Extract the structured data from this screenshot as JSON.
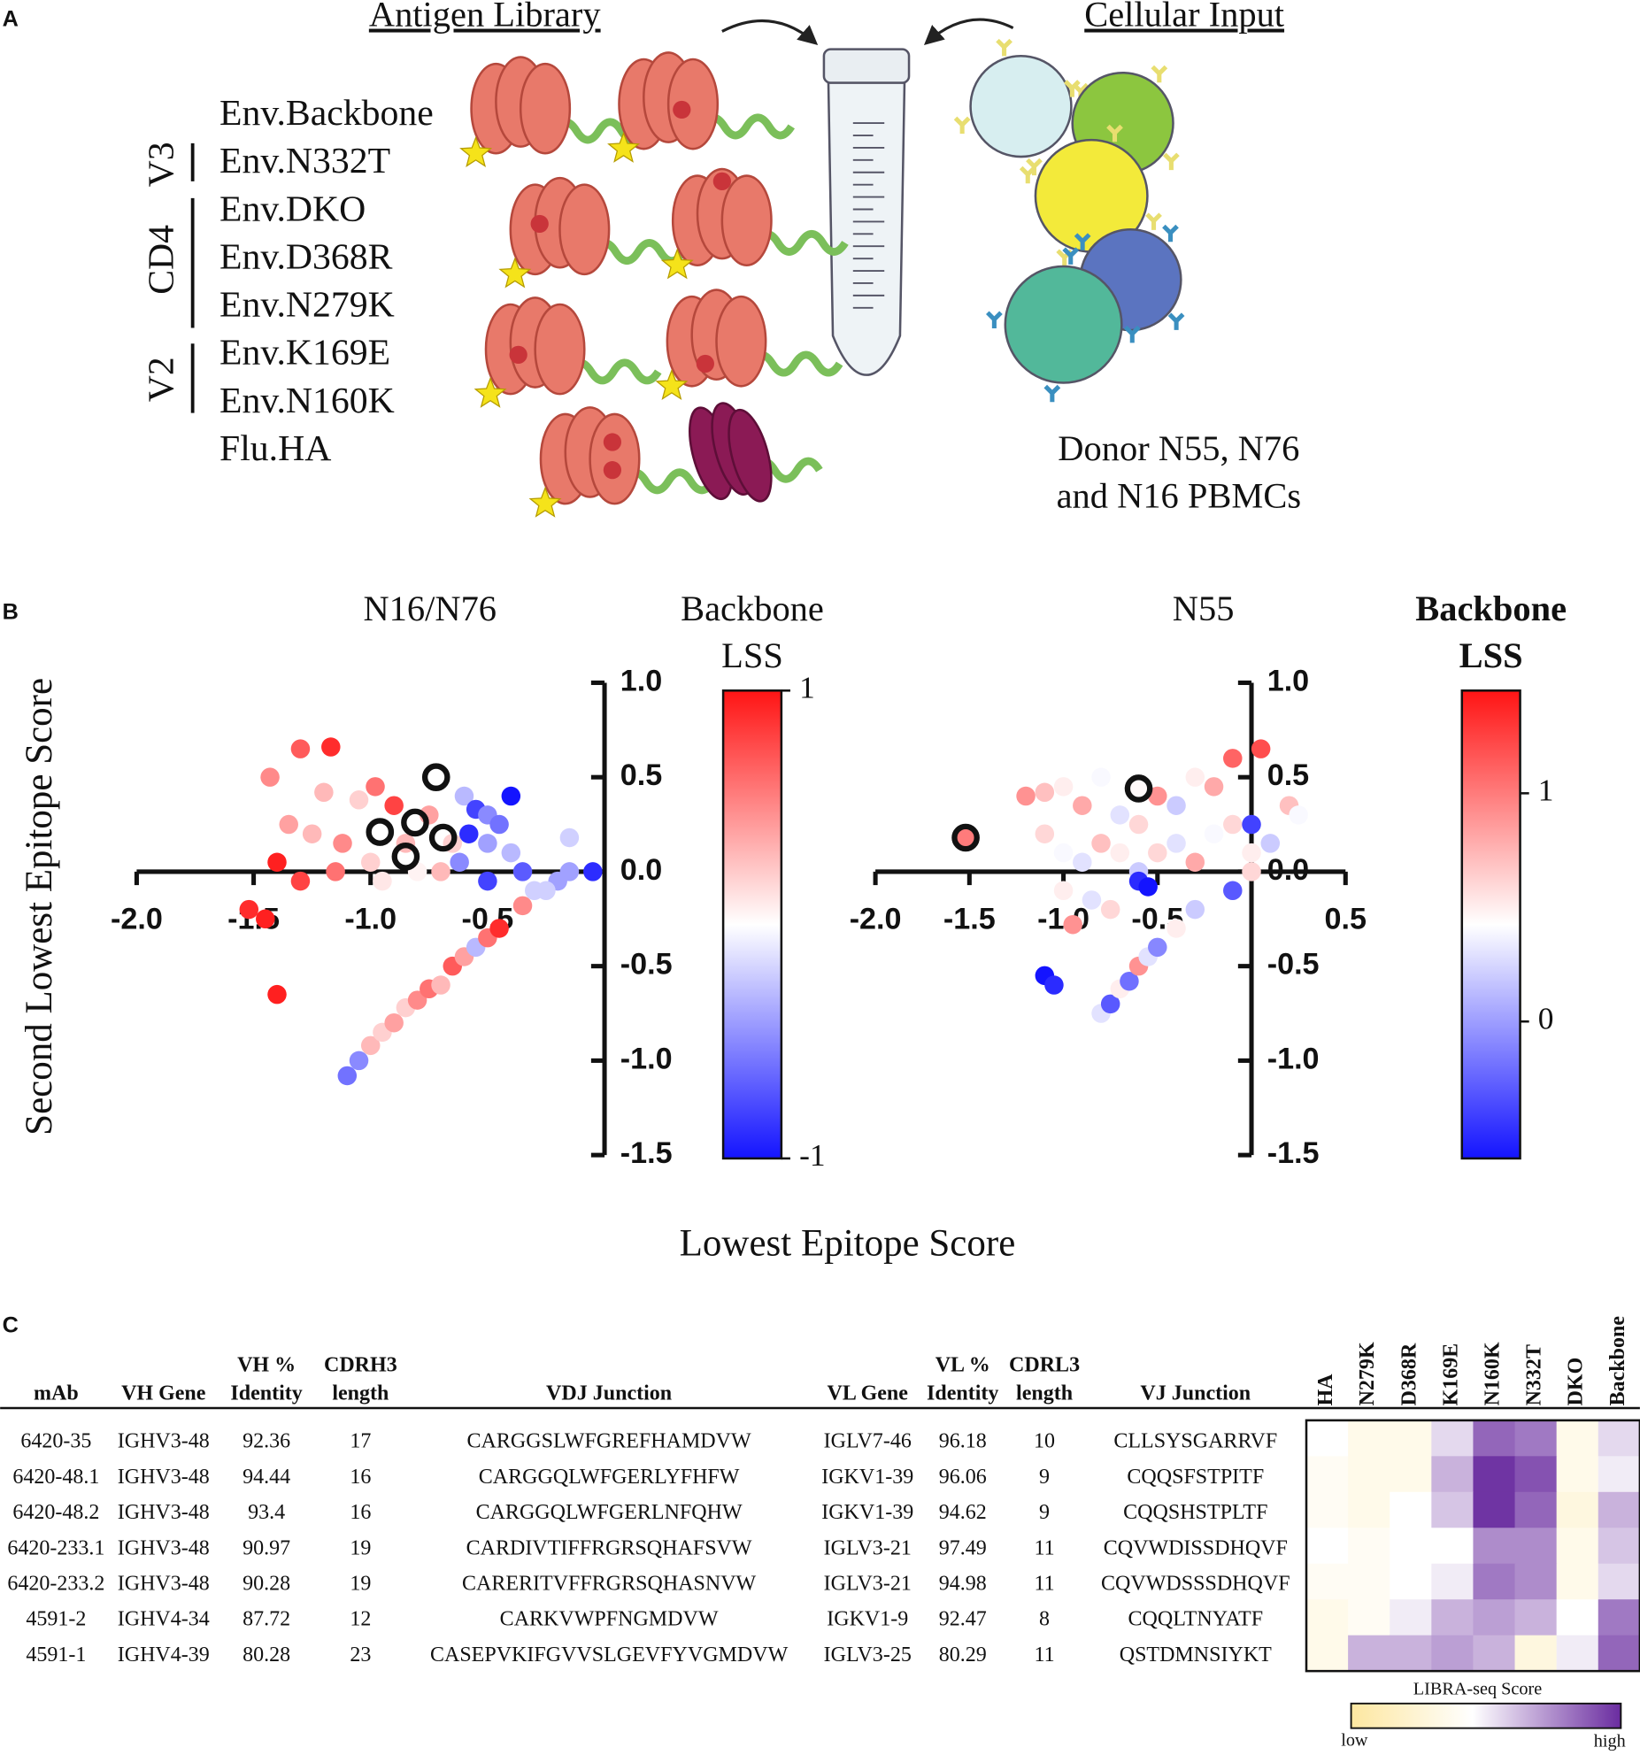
{
  "panel_a": {
    "label": "A",
    "library_title": "Antigen Library",
    "input_title": "Cellular Input",
    "antigens": [
      "Env.Backbone",
      "Env.N332T",
      "Env.DKO",
      "Env.D368R",
      "Env.N279K",
      "Env.K169E",
      "Env.N160K",
      "Flu.HA"
    ],
    "groups": [
      "V3",
      "CD4",
      "V2"
    ],
    "donor_lines": [
      "Donor N55, N76",
      "and N16 PBMCs"
    ]
  },
  "panel_b": {
    "label": "B",
    "x_label": "Lowest Epitope Score",
    "y_label": "Second Lowest Epitope Score"
  },
  "chart_data": [
    {
      "type": "scatter",
      "title": "N16/N76",
      "colorbar_title": [
        "Backbone",
        "LSS"
      ],
      "xlim": [
        -2,
        0
      ],
      "ylim": [
        -1.5,
        1
      ],
      "xticks": [
        {
          "value": -2,
          "label": "-2.0"
        },
        {
          "value": -1.5,
          "label": "-1.5"
        },
        {
          "value": -1,
          "label": "-1.0"
        },
        -0.5
      ],
      "yticks": [
        {
          "value": 1,
          "label": "1.0"
        },
        0.5,
        {
          "value": 0,
          "label": "0.0"
        },
        -0.5,
        {
          "value": -1,
          "label": "-1.0"
        },
        {
          "value": -1.5,
          "label": "-1.5"
        }
      ],
      "clim": [
        -1,
        1
      ],
      "cticks": [
        1,
        -1
      ],
      "x": [
        -1.3,
        -1.17,
        -1.43,
        -1.2,
        -1.05,
        -0.98,
        -1.35,
        -1.25,
        -1.12,
        -1.0,
        -0.9,
        -0.85,
        -0.95,
        -1.15,
        -1.4,
        -1.52,
        -1.45,
        -1.3,
        -0.8,
        -0.75,
        -0.7,
        -0.65,
        -1.4,
        -0.6,
        -0.55,
        -0.5,
        -0.45,
        -0.5,
        -0.58,
        -0.4,
        -0.35,
        -0.15,
        -0.2,
        -0.3,
        -0.05,
        -0.5,
        -0.62,
        -0.4,
        -1.1,
        -1.05,
        -1.0,
        -0.95,
        -0.9,
        -0.85,
        -0.8,
        -0.75,
        -0.7,
        -0.65,
        -0.6,
        -0.55,
        -0.5,
        -0.45,
        -0.35,
        -0.25,
        -0.15
      ],
      "y": [
        0.65,
        0.66,
        0.5,
        0.42,
        0.38,
        0.45,
        0.25,
        0.2,
        0.15,
        0.05,
        0.35,
        0.15,
        -0.05,
        0.0,
        0.05,
        -0.2,
        -0.25,
        -0.05,
        0.0,
        0.3,
        0.0,
        0.15,
        -0.65,
        0.4,
        0.33,
        0.3,
        0.25,
        0.15,
        0.2,
        0.1,
        0.0,
        0.18,
        -0.05,
        -0.1,
        0.0,
        -0.05,
        0.05,
        0.4,
        -1.08,
        -1.0,
        -0.92,
        -0.85,
        -0.8,
        -0.72,
        -0.68,
        -0.62,
        -0.6,
        -0.5,
        -0.45,
        -0.4,
        -0.35,
        -0.3,
        -0.18,
        -0.1,
        0.0
      ],
      "lss": [
        0.7,
        0.9,
        0.5,
        0.3,
        0.2,
        0.6,
        0.4,
        0.3,
        0.5,
        0.2,
        0.8,
        0.3,
        0.1,
        0.6,
        0.95,
        0.9,
        0.95,
        0.8,
        0.05,
        0.4,
        0.3,
        0.2,
        0.95,
        -0.3,
        -0.8,
        -0.5,
        -0.6,
        -0.4,
        -0.9,
        -0.3,
        -0.7,
        -0.2,
        -0.4,
        -0.2,
        -0.9,
        -0.8,
        -0.5,
        -1.0,
        -0.6,
        -0.5,
        0.3,
        0.2,
        0.4,
        0.2,
        0.5,
        0.6,
        0.3,
        0.7,
        0.4,
        -0.3,
        0.6,
        0.9,
        0.5,
        -0.2,
        -0.4
      ],
      "highlight_x": [
        -0.72,
        -0.96,
        -0.81,
        -0.85,
        -0.69
      ],
      "highlight_y": [
        0.5,
        0.21,
        0.26,
        0.08,
        0.18
      ]
    },
    {
      "type": "scatter",
      "title": "N55",
      "colorbar_title": [
        "Backbone",
        "LSS"
      ],
      "xlim": [
        -2,
        0.5
      ],
      "ylim": [
        -1.5,
        1
      ],
      "xticks": [
        {
          "value": -2,
          "label": "-2.0"
        },
        {
          "value": -1.5,
          "label": "-1.5"
        },
        {
          "value": -1,
          "label": "-1.0"
        },
        -0.5,
        0.5
      ],
      "yticks": [
        {
          "value": 1,
          "label": "1.0"
        },
        0.5,
        {
          "value": 0,
          "label": "0.0"
        },
        -0.5,
        {
          "value": -1,
          "label": "-1.0"
        },
        {
          "value": -1.5,
          "label": "-1.5"
        }
      ],
      "clim": [
        -0.6,
        1.45
      ],
      "cticks": [
        1,
        0
      ],
      "x": [
        -1.2,
        -1.1,
        -1.0,
        -0.9,
        -0.8,
        -0.7,
        -0.6,
        -0.5,
        -0.4,
        -0.3,
        -0.2,
        -0.1,
        0.05,
        0.2,
        0.25,
        -1.1,
        -1.0,
        -0.9,
        -0.8,
        -0.7,
        -0.6,
        -0.5,
        -0.4,
        -0.3,
        -0.2,
        -0.1,
        0.0,
        0.1,
        0.0,
        -0.6,
        -0.55,
        -1.0,
        -0.85,
        -0.75,
        -0.95,
        -1.1,
        -1.05,
        -0.8,
        -0.75,
        -0.7,
        -0.65,
        -0.6,
        -0.55,
        -0.5,
        -0.4,
        -0.3,
        -0.1,
        0.0
      ],
      "y": [
        0.4,
        0.42,
        0.45,
        0.35,
        0.5,
        0.3,
        0.25,
        0.4,
        0.35,
        0.5,
        0.45,
        0.6,
        0.65,
        0.35,
        0.3,
        0.2,
        0.1,
        0.05,
        0.15,
        0.1,
        0.0,
        0.1,
        0.15,
        0.05,
        0.2,
        0.25,
        0.1,
        0.15,
        0.25,
        -0.05,
        -0.08,
        -0.1,
        -0.15,
        -0.2,
        -0.28,
        -0.55,
        -0.6,
        -0.75,
        -0.7,
        -0.62,
        -0.58,
        -0.5,
        -0.45,
        -0.4,
        -0.3,
        -0.2,
        -0.1,
        0.0
      ],
      "lss": [
        0.9,
        0.7,
        0.5,
        0.8,
        0.4,
        0.3,
        0.6,
        0.9,
        0.2,
        0.5,
        0.8,
        1.1,
        1.2,
        0.7,
        0.4,
        0.6,
        0.4,
        0.3,
        0.7,
        0.5,
        0.2,
        0.6,
        0.3,
        0.8,
        0.4,
        0.6,
        0.5,
        0.2,
        -0.4,
        -0.5,
        -0.6,
        0.5,
        0.3,
        0.6,
        0.9,
        -0.6,
        -0.5,
        0.3,
        -0.3,
        0.5,
        -0.2,
        0.9,
        0.3,
        -0.1,
        0.5,
        0.2,
        -0.3,
        0.6
      ],
      "highlight_x": [
        -1.52,
        -0.6
      ],
      "highlight_y": [
        0.18,
        0.44
      ],
      "highlight_lss": [
        1.0,
        0.45
      ]
    }
  ],
  "panel_c": {
    "label": "C",
    "table": {
      "columns": [
        [
          "mAb"
        ],
        [
          "VH Gene"
        ],
        [
          "VH %",
          "Identity"
        ],
        [
          "CDRH3",
          "length"
        ],
        [
          "VDJ Junction"
        ],
        [
          "VL Gene"
        ],
        [
          "VL %",
          "Identity"
        ],
        [
          "CDRL3",
          "length"
        ],
        [
          "VJ Junction"
        ]
      ],
      "rows": [
        [
          "6420-35",
          "IGHV3-48",
          "92.36",
          "17",
          "CARGGSLWFGREFHAMDVW",
          "IGLV7-46",
          "96.18",
          "10",
          "CLLSYSGARRVF"
        ],
        [
          "6420-48.1",
          "IGHV3-48",
          "94.44",
          "16",
          "CARGGQLWFGERLYFHFW",
          "IGKV1-39",
          "96.06",
          "9",
          "CQQSFSTPITF"
        ],
        [
          "6420-48.2",
          "IGHV3-48",
          "93.4",
          "16",
          "CARGGQLWFGERLNFQHW",
          "IGKV1-39",
          "94.62",
          "9",
          "CQQSHSTPLTF"
        ],
        [
          "6420-233.1",
          "IGHV3-48",
          "90.97",
          "19",
          "CARDIVTIFFRGRSQHAFSVW",
          "IGLV3-21",
          "97.49",
          "11",
          "CQVWDISSDHQVF"
        ],
        [
          "6420-233.2",
          "IGHV3-48",
          "90.28",
          "19",
          "CARERITVFFRGRSQHASNVW",
          "IGLV3-21",
          "94.98",
          "11",
          "CQVWDSSSDHQVF"
        ],
        [
          "4591-2",
          "IGHV4-34",
          "87.72",
          "12",
          "CARKVWPFNGMDVW",
          "IGKV1-9",
          "92.47",
          "8",
          "CQQLTNYATF"
        ],
        [
          "4591-1",
          "IGHV4-39",
          "80.28",
          "23",
          "CASEPVKIFGVVSLGEVFYVGMDVW",
          "IGLV3-25",
          "80.29",
          "11",
          "QSTDMNSIYKT"
        ]
      ]
    },
    "heatmap": {
      "columns": [
        "HA",
        "N279K",
        "D368R",
        "K169E",
        "N160K",
        "N332T",
        "DKO",
        "Backbone"
      ],
      "clim": [
        0,
        1
      ],
      "values": [
        [
          0.45,
          0.35,
          0.35,
          0.55,
          0.85,
          0.8,
          0.35,
          0.55
        ],
        [
          0.4,
          0.35,
          0.35,
          0.65,
          0.98,
          0.9,
          0.35,
          0.5
        ],
        [
          0.4,
          0.35,
          0.45,
          0.6,
          0.98,
          0.85,
          0.3,
          0.65
        ],
        [
          0.45,
          0.4,
          0.45,
          0.45,
          0.75,
          0.75,
          0.35,
          0.6
        ],
        [
          0.4,
          0.4,
          0.45,
          0.5,
          0.8,
          0.75,
          0.35,
          0.55
        ],
        [
          0.35,
          0.4,
          0.5,
          0.65,
          0.7,
          0.65,
          0.45,
          0.8
        ],
        [
          0.35,
          0.65,
          0.65,
          0.7,
          0.65,
          0.3,
          0.5,
          0.85
        ]
      ],
      "colorbar_title": "LIBRA-seq Score",
      "low": "low",
      "high": "high"
    }
  }
}
